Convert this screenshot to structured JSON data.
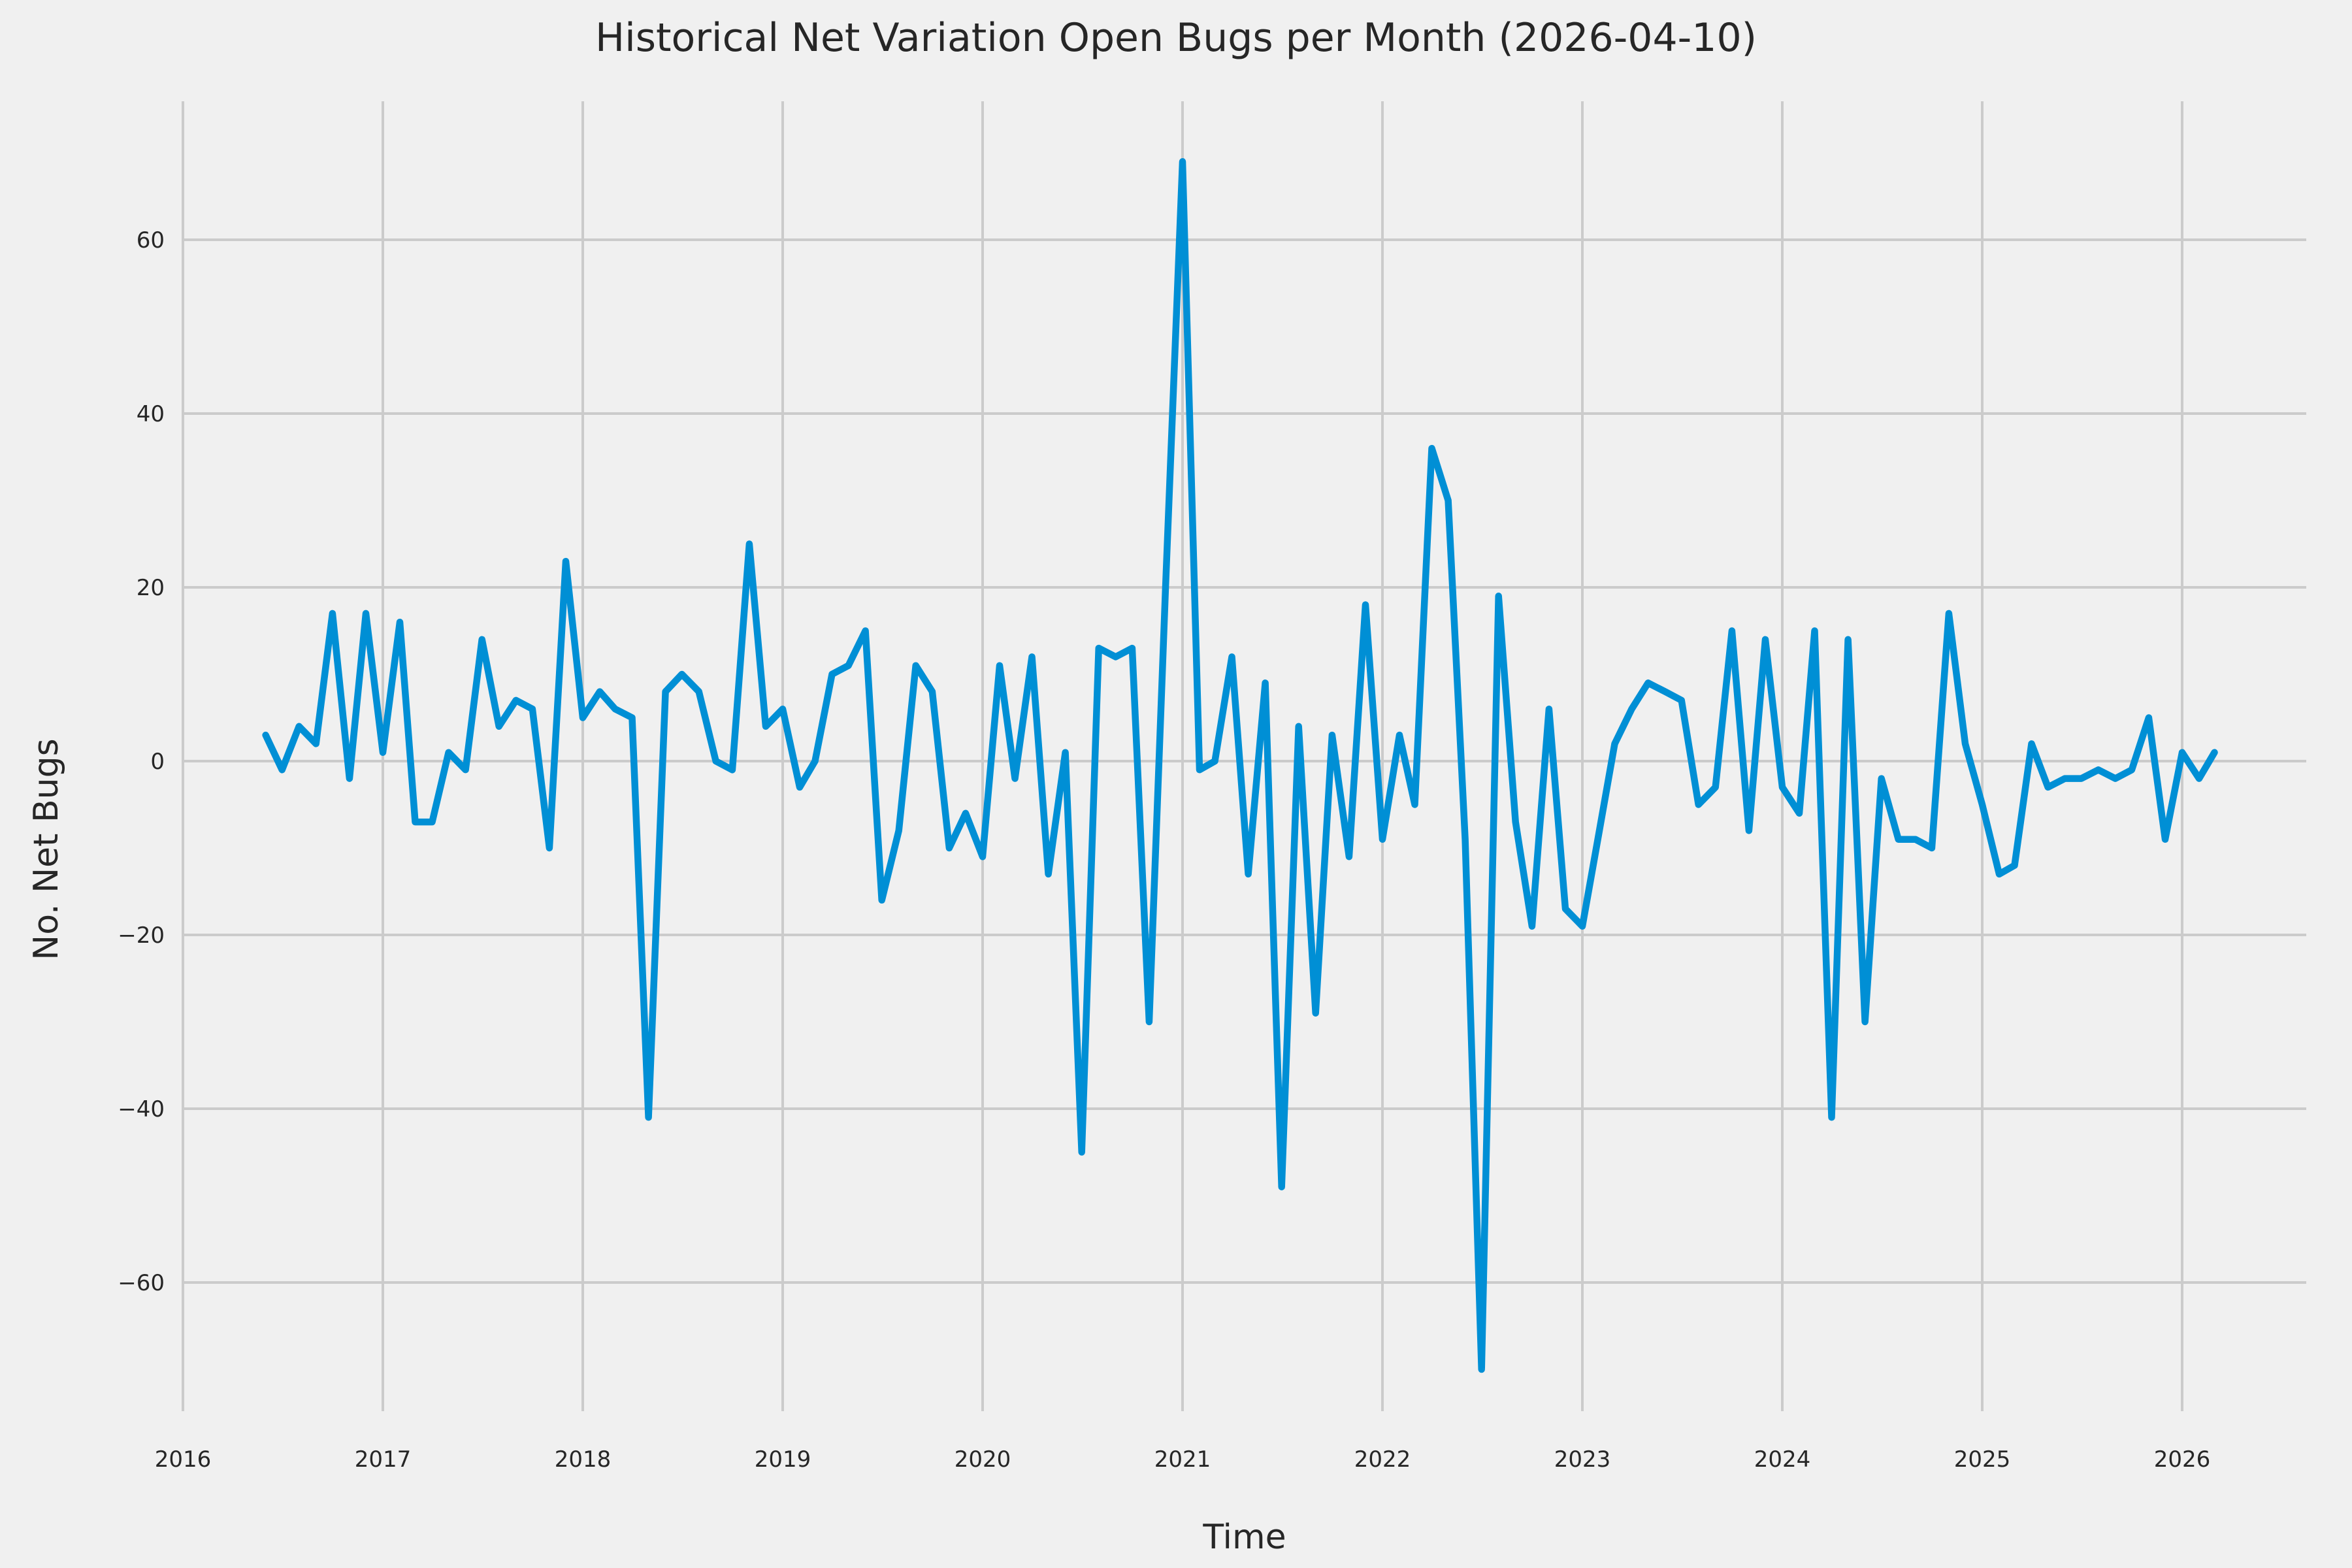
{
  "title": "Historical Net Variation Open Bugs per Month (2026-04-10)",
  "xlabel": "Time",
  "ylabel": "No. Net Bugs",
  "colors": {
    "line": "#008fd5",
    "background": "#f0f0f0",
    "grid": "#cbcbcb",
    "text": "#262626"
  },
  "x_ticks": [
    "2016",
    "2017",
    "2018",
    "2019",
    "2020",
    "2021",
    "2022",
    "2023",
    "2024",
    "2025",
    "2026"
  ],
  "y_ticks": [
    {
      "label": "60",
      "value": 60
    },
    {
      "label": "40",
      "value": 40
    },
    {
      "label": "20",
      "value": 20
    },
    {
      "label": "0",
      "value": 0
    },
    {
      "label": "−20",
      "value": -20
    },
    {
      "label": "−40",
      "value": -40
    },
    {
      "label": "−60",
      "value": -60
    }
  ],
  "chart_data": {
    "type": "line",
    "title": "Historical Net Variation Open Bugs per Month (2026-04-10)",
    "xlabel": "Time",
    "ylabel": "No. Net Bugs",
    "legend": "none",
    "grid": "on",
    "xlim": [
      "2016-01",
      "2026-08"
    ],
    "ylim": [
      -75,
      76
    ],
    "series_name": "net_open_bugs_variation",
    "x": [
      "2016-06",
      "2016-07",
      "2016-08",
      "2016-09",
      "2016-10",
      "2016-11",
      "2016-12",
      "2017-01",
      "2017-02",
      "2017-03",
      "2017-04",
      "2017-05",
      "2017-06",
      "2017-07",
      "2017-08",
      "2017-09",
      "2017-10",
      "2017-11",
      "2017-12",
      "2018-01",
      "2018-02",
      "2018-03",
      "2018-04",
      "2018-05",
      "2018-06",
      "2018-07",
      "2018-08",
      "2018-09",
      "2018-10",
      "2018-11",
      "2018-12",
      "2019-01",
      "2019-02",
      "2019-03",
      "2019-04",
      "2019-05",
      "2019-06",
      "2019-07",
      "2019-08",
      "2019-09",
      "2019-10",
      "2019-11",
      "2019-12",
      "2020-01",
      "2020-02",
      "2020-03",
      "2020-04",
      "2020-05",
      "2020-06",
      "2020-07",
      "2020-08",
      "2020-09",
      "2020-10",
      "2020-11",
      "2020-12",
      "2021-01",
      "2021-02",
      "2021-03",
      "2021-04",
      "2021-05",
      "2021-06",
      "2021-07",
      "2021-08",
      "2021-09",
      "2021-10",
      "2021-11",
      "2021-12",
      "2022-01",
      "2022-02",
      "2022-03",
      "2022-04",
      "2022-05",
      "2022-06",
      "2022-07",
      "2022-08",
      "2022-09",
      "2022-10",
      "2022-11",
      "2022-12",
      "2023-01",
      "2023-02",
      "2023-03",
      "2023-04",
      "2023-05",
      "2023-06",
      "2023-07",
      "2023-08",
      "2023-09",
      "2023-10",
      "2023-11",
      "2023-12",
      "2024-01",
      "2024-02",
      "2024-03",
      "2024-04",
      "2024-05",
      "2024-06",
      "2024-07",
      "2024-08",
      "2024-09",
      "2024-10",
      "2024-11",
      "2024-12",
      "2025-01",
      "2025-02",
      "2025-03",
      "2025-04",
      "2025-05",
      "2025-06",
      "2025-07",
      "2025-08",
      "2025-09",
      "2025-10",
      "2025-11",
      "2025-12",
      "2026-01",
      "2026-02",
      "2026-03"
    ],
    "y": [
      3,
      -1,
      4,
      2,
      17,
      -2,
      17,
      1,
      16,
      -7,
      -7,
      1,
      -1,
      14,
      4,
      7,
      6,
      -10,
      23,
      5,
      8,
      6,
      5,
      -41,
      8,
      10,
      8,
      0,
      -1,
      25,
      4,
      6,
      -3,
      0,
      10,
      11,
      15,
      -16,
      -8,
      11,
      8,
      -10,
      -6,
      -11,
      11,
      -2,
      12,
      -13,
      1,
      -45,
      13,
      12,
      13,
      -30,
      20,
      69,
      -1,
      0,
      12,
      -13,
      9,
      -49,
      4,
      -29,
      3,
      -11,
      18,
      -9,
      3,
      -5,
      36,
      30,
      -9,
      -70,
      19,
      -7,
      -19,
      6,
      -17,
      -19,
      -8,
      2,
      6,
      9,
      8,
      7,
      -5,
      -3,
      15,
      -8,
      14,
      -3,
      -6,
      15,
      -41,
      14,
      -30,
      -2,
      -9,
      -9,
      -10,
      17,
      2,
      -5,
      -13,
      -12,
      2,
      -3,
      -2,
      -2,
      -1,
      -2,
      -1,
      5,
      -9,
      1,
      -2,
      1
    ]
  },
  "plot_geometry_note": "x: 2016 at px280, 306px per year; y: 0 at px1165, 13.3px per unit; plot area x 280-3530, y 155-2160"
}
